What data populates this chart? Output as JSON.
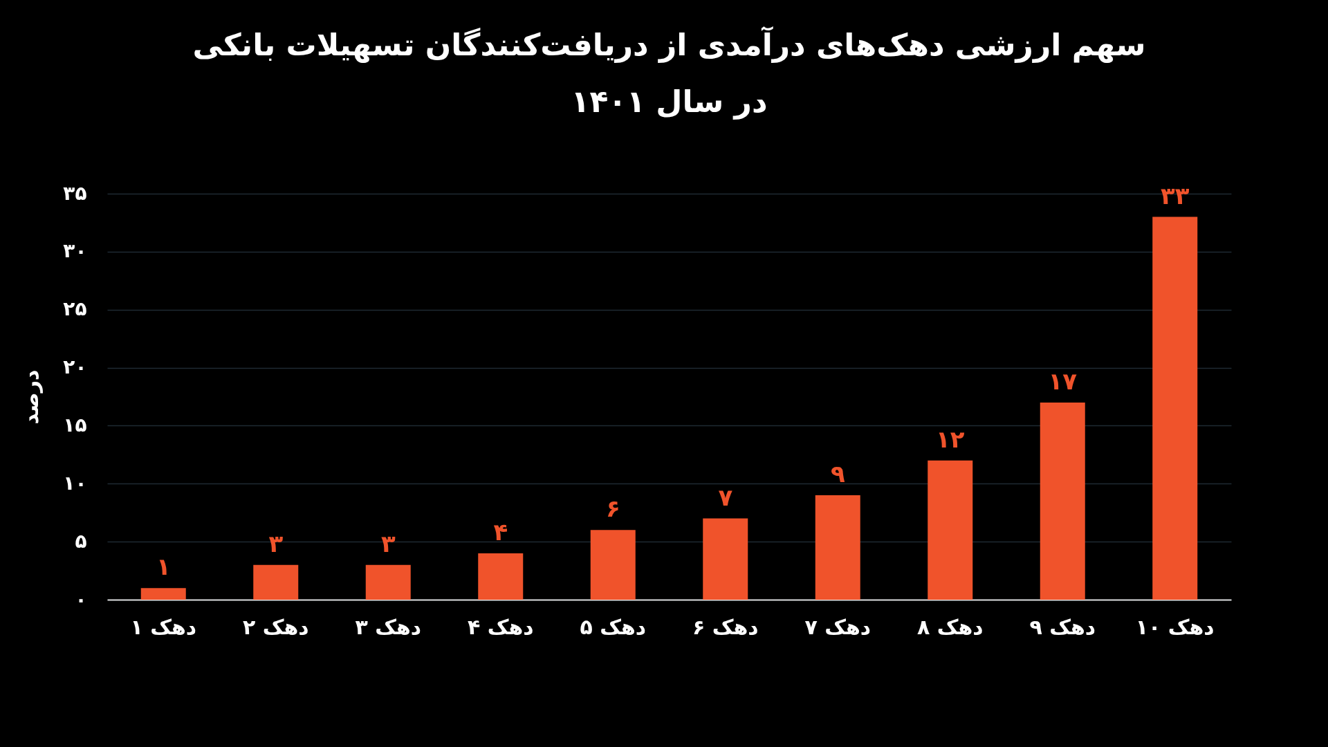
{
  "chart_data": {
    "type": "bar",
    "title": "سهم ارزشی دهک‌های درآمدی از دریافت‌کنندگان تسهیلات بانکی\nدر سال ۱۴۰۱",
    "ylabel": "درصد",
    "categories": [
      "دهک ۱",
      "دهک ۲",
      "دهک ۳",
      "دهک ۴",
      "دهک ۵",
      "دهک ۶",
      "دهک ۷",
      "دهک ۸",
      "دهک ۹",
      "دهک ۱۰"
    ],
    "values": [
      1,
      3,
      3,
      4,
      6,
      7,
      9,
      12,
      17,
      33
    ],
    "value_labels": [
      "۱",
      "۳",
      "۳",
      "۴",
      "۶",
      "۷",
      "۹",
      "۱۲",
      "۱۷",
      "۳۳"
    ],
    "color": "#f0532b",
    "ylim": [
      0,
      35
    ],
    "yticks": [
      {
        "value": 0,
        "label": "۰"
      },
      {
        "value": 5,
        "label": "۵"
      },
      {
        "value": 10,
        "label": "۱۰"
      },
      {
        "value": 15,
        "label": "۱۵"
      },
      {
        "value": 20,
        "label": "۲۰"
      },
      {
        "value": 25,
        "label": "۲۵"
      },
      {
        "value": 30,
        "label": "۳۰"
      },
      {
        "value": 35,
        "label": "۳۵"
      }
    ],
    "grid": "y"
  }
}
